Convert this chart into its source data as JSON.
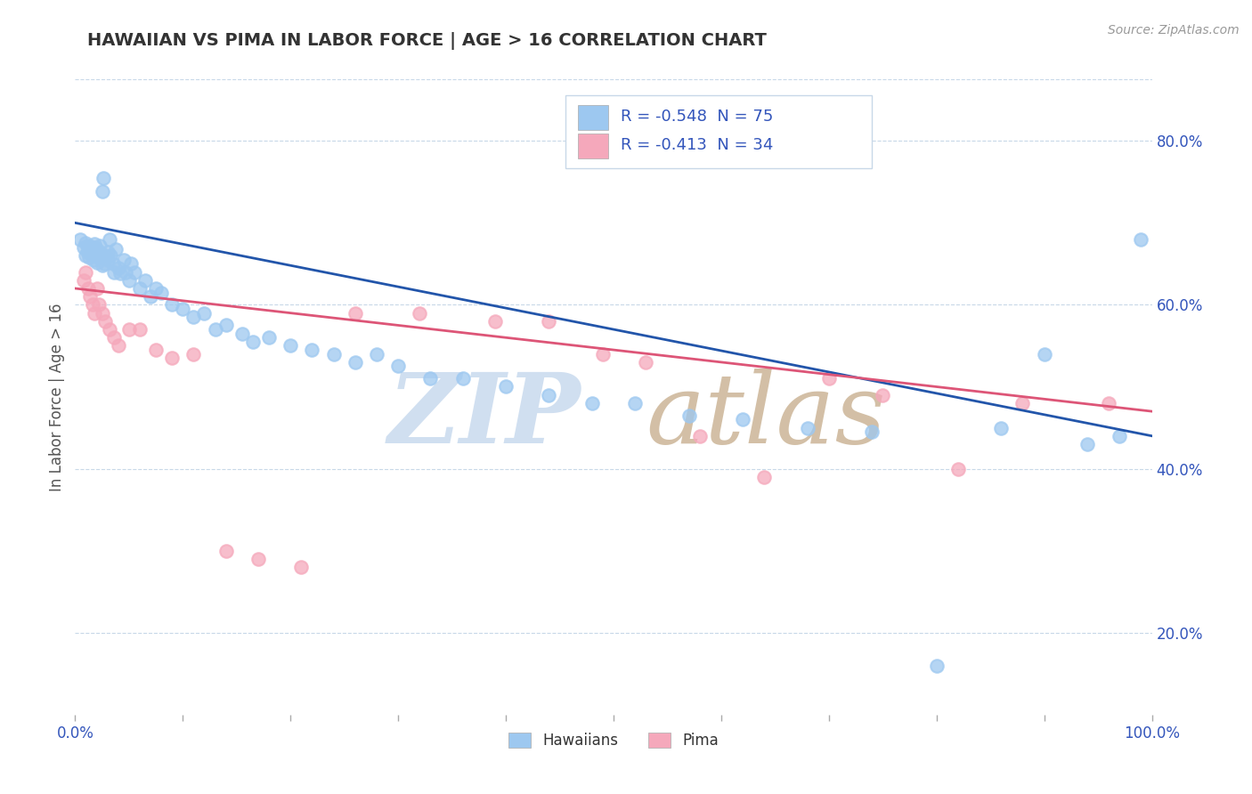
{
  "title": "HAWAIIAN VS PIMA IN LABOR FORCE | AGE > 16 CORRELATION CHART",
  "source_text": "Source: ZipAtlas.com",
  "ylabel": "In Labor Force | Age > 16",
  "xlim": [
    0.0,
    1.0
  ],
  "ylim": [
    0.1,
    0.875
  ],
  "y_ticks_right": [
    0.2,
    0.4,
    0.6,
    0.8
  ],
  "y_tick_labels_right": [
    "20.0%",
    "40.0%",
    "60.0%",
    "80.0%"
  ],
  "hawaiian_R": -0.548,
  "hawaiian_N": 75,
  "pima_R": -0.413,
  "pima_N": 34,
  "hawaiian_color": "#9dc8f0",
  "pima_color": "#f5a8bb",
  "hawaiian_line_color": "#2255aa",
  "pima_line_color": "#dd5577",
  "watermark_zip_color": "#d0dff0",
  "watermark_atlas_color": "#c8b090",
  "legend_text_color": "#3355bb",
  "background_color": "#ffffff",
  "hawaiian_x": [
    0.005,
    0.008,
    0.01,
    0.01,
    0.011,
    0.012,
    0.013,
    0.015,
    0.015,
    0.016,
    0.017,
    0.018,
    0.018,
    0.019,
    0.02,
    0.02,
    0.021,
    0.022,
    0.023,
    0.024,
    0.025,
    0.025,
    0.026,
    0.027,
    0.028,
    0.03,
    0.03,
    0.032,
    0.033,
    0.035,
    0.036,
    0.038,
    0.04,
    0.042,
    0.045,
    0.047,
    0.05,
    0.052,
    0.055,
    0.06,
    0.065,
    0.07,
    0.075,
    0.08,
    0.09,
    0.1,
    0.11,
    0.12,
    0.13,
    0.14,
    0.155,
    0.165,
    0.18,
    0.2,
    0.22,
    0.24,
    0.26,
    0.28,
    0.3,
    0.33,
    0.36,
    0.4,
    0.44,
    0.48,
    0.52,
    0.57,
    0.62,
    0.68,
    0.74,
    0.8,
    0.86,
    0.9,
    0.94,
    0.97,
    0.99
  ],
  "hawaiian_y": [
    0.68,
    0.67,
    0.66,
    0.675,
    0.665,
    0.672,
    0.658,
    0.671,
    0.662,
    0.668,
    0.655,
    0.674,
    0.66,
    0.67,
    0.668,
    0.652,
    0.665,
    0.658,
    0.672,
    0.66,
    0.648,
    0.738,
    0.755,
    0.65,
    0.66,
    0.665,
    0.655,
    0.68,
    0.66,
    0.65,
    0.64,
    0.668,
    0.645,
    0.638,
    0.655,
    0.64,
    0.63,
    0.65,
    0.64,
    0.62,
    0.63,
    0.61,
    0.62,
    0.615,
    0.6,
    0.595,
    0.585,
    0.59,
    0.57,
    0.575,
    0.565,
    0.555,
    0.56,
    0.55,
    0.545,
    0.54,
    0.53,
    0.54,
    0.525,
    0.51,
    0.51,
    0.5,
    0.49,
    0.48,
    0.48,
    0.465,
    0.46,
    0.45,
    0.445,
    0.16,
    0.45,
    0.54,
    0.43,
    0.44,
    0.68
  ],
  "pima_x": [
    0.008,
    0.01,
    0.012,
    0.014,
    0.016,
    0.018,
    0.02,
    0.022,
    0.025,
    0.028,
    0.032,
    0.036,
    0.04,
    0.05,
    0.06,
    0.075,
    0.09,
    0.11,
    0.14,
    0.17,
    0.21,
    0.26,
    0.32,
    0.39,
    0.44,
    0.49,
    0.53,
    0.58,
    0.64,
    0.7,
    0.75,
    0.82,
    0.88,
    0.96
  ],
  "pima_y": [
    0.63,
    0.64,
    0.62,
    0.61,
    0.6,
    0.59,
    0.62,
    0.6,
    0.59,
    0.58,
    0.57,
    0.56,
    0.55,
    0.57,
    0.57,
    0.545,
    0.535,
    0.54,
    0.3,
    0.29,
    0.28,
    0.59,
    0.59,
    0.58,
    0.58,
    0.54,
    0.53,
    0.44,
    0.39,
    0.51,
    0.49,
    0.4,
    0.48,
    0.48
  ]
}
